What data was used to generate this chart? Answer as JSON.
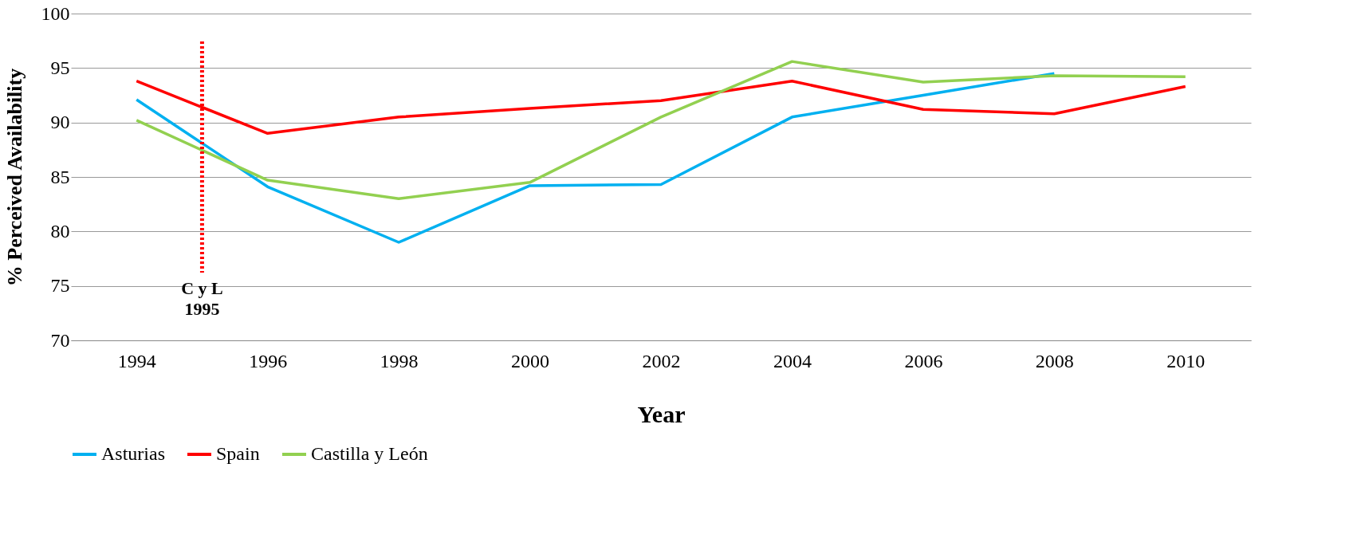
{
  "chart_data": {
    "type": "line",
    "xlabel": "Year",
    "ylabel": "% Perceived Availability",
    "x": [
      1994,
      1996,
      1998,
      2000,
      2002,
      2004,
      2006,
      2008,
      2010
    ],
    "series": [
      {
        "name": "Asturias",
        "color": "#00b0f0",
        "values": [
          92.1,
          84.1,
          79.0,
          84.2,
          84.3,
          90.5,
          92.5,
          94.5,
          null
        ]
      },
      {
        "name": "Spain",
        "color": "#ff0000",
        "values": [
          93.8,
          89.0,
          90.5,
          91.3,
          92.0,
          93.8,
          91.2,
          90.8,
          93.3
        ]
      },
      {
        "name": "Castilla y León",
        "color": "#92d050",
        "values": [
          90.2,
          84.7,
          83.0,
          84.5,
          90.5,
          95.6,
          93.7,
          94.3,
          94.2
        ]
      }
    ],
    "xlim": [
      1993,
      2011
    ],
    "xticks": [
      1994,
      1996,
      1998,
      2000,
      2002,
      2004,
      2006,
      2008,
      2010
    ],
    "ylim": [
      70,
      100
    ],
    "yticks": [
      70,
      75,
      80,
      85,
      90,
      95,
      100
    ],
    "ref_lines": [
      {
        "axis": "x",
        "value": 1995,
        "label": "C y L\n1995",
        "color": "#ff0000",
        "line_style": "dotted"
      }
    ],
    "grid": "y",
    "legend": "bottom",
    "marker": "none",
    "line_style": "solid"
  }
}
